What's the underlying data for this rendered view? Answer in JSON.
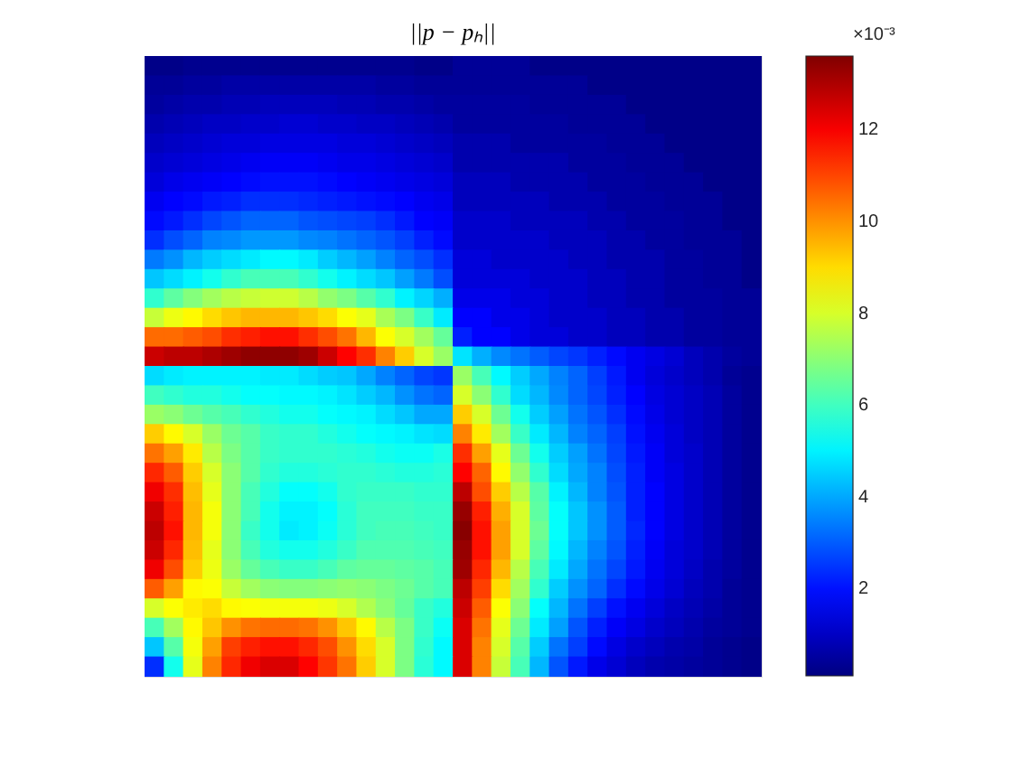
{
  "chart_data": {
    "type": "heatmap",
    "title": "||p − pₕ||",
    "clabel": "×10⁻³",
    "clim": [
      0.1,
      13.6
    ],
    "cticks": [
      2,
      4,
      6,
      8,
      10,
      12
    ],
    "categories": [
      null,
      null,
      null,
      null,
      null,
      null,
      null,
      null,
      null,
      null,
      null,
      null,
      null,
      null,
      null,
      null,
      null,
      null,
      null,
      null,
      null,
      null,
      null,
      null,
      null,
      null,
      null,
      null,
      null,
      null,
      null,
      null
    ],
    "y_categories": [
      null,
      null,
      null,
      null,
      null,
      null,
      null,
      null,
      null,
      null,
      null,
      null,
      null,
      null,
      null,
      null,
      null,
      null,
      null,
      null,
      null,
      null,
      null,
      null,
      null,
      null,
      null,
      null,
      null,
      null,
      null,
      null
    ],
    "cells": [
      [
        0.2,
        0.2,
        0.3,
        0.3,
        0.3,
        0.3,
        0.3,
        0.3,
        0.3,
        0.3,
        0.3,
        0.3,
        0.3,
        0.3,
        0.2,
        0.2,
        0.4,
        0.4,
        0.4,
        0.4,
        0.2,
        0.2,
        0.2,
        0.2,
        0.2,
        0.2,
        0.2,
        0.2,
        0.2,
        0.2,
        0.2,
        0.2
      ],
      [
        0.4,
        0.4,
        0.5,
        0.5,
        0.6,
        0.6,
        0.6,
        0.6,
        0.6,
        0.6,
        0.6,
        0.6,
        0.5,
        0.5,
        0.4,
        0.4,
        0.4,
        0.4,
        0.4,
        0.4,
        0.4,
        0.4,
        0.4,
        0.2,
        0.2,
        0.2,
        0.2,
        0.2,
        0.2,
        0.2,
        0.2,
        0.2
      ],
      [
        0.5,
        0.6,
        0.7,
        0.7,
        0.8,
        0.8,
        0.9,
        0.9,
        0.9,
        0.9,
        0.8,
        0.8,
        0.7,
        0.7,
        0.6,
        0.5,
        0.5,
        0.5,
        0.5,
        0.5,
        0.4,
        0.4,
        0.4,
        0.4,
        0.4,
        0.2,
        0.2,
        0.2,
        0.2,
        0.2,
        0.2,
        0.2
      ],
      [
        0.7,
        0.8,
        0.9,
        1.0,
        1.0,
        1.1,
        1.1,
        1.2,
        1.2,
        1.1,
        1.1,
        1.0,
        1.0,
        0.9,
        0.8,
        0.7,
        0.5,
        0.5,
        0.5,
        0.5,
        0.5,
        0.5,
        0.4,
        0.4,
        0.4,
        0.4,
        0.2,
        0.2,
        0.2,
        0.2,
        0.2,
        0.2
      ],
      [
        0.9,
        1.0,
        1.1,
        1.2,
        1.3,
        1.3,
        1.4,
        1.4,
        1.4,
        1.4,
        1.3,
        1.3,
        1.2,
        1.1,
        1.0,
        0.9,
        0.7,
        0.7,
        0.7,
        0.5,
        0.5,
        0.5,
        0.5,
        0.5,
        0.4,
        0.4,
        0.4,
        0.2,
        0.2,
        0.2,
        0.2,
        0.2
      ],
      [
        1.1,
        1.2,
        1.3,
        1.4,
        1.5,
        1.6,
        1.7,
        1.7,
        1.7,
        1.6,
        1.5,
        1.5,
        1.4,
        1.3,
        1.2,
        1.1,
        0.7,
        0.7,
        0.7,
        0.7,
        0.7,
        0.7,
        0.5,
        0.5,
        0.5,
        0.4,
        0.4,
        0.4,
        0.2,
        0.2,
        0.2,
        0.2
      ],
      [
        1.3,
        1.5,
        1.6,
        1.7,
        1.8,
        1.9,
        2.0,
        2.0,
        2.0,
        1.9,
        1.8,
        1.7,
        1.6,
        1.5,
        1.4,
        1.3,
        0.9,
        0.9,
        0.9,
        0.7,
        0.7,
        0.7,
        0.7,
        0.5,
        0.5,
        0.5,
        0.4,
        0.4,
        0.4,
        0.2,
        0.2,
        0.2
      ],
      [
        1.6,
        1.8,
        1.9,
        2.1,
        2.2,
        2.4,
        2.4,
        2.4,
        2.3,
        2.2,
        2.1,
        2.0,
        1.9,
        1.8,
        1.6,
        1.5,
        0.9,
        0.9,
        0.9,
        0.9,
        0.9,
        0.7,
        0.7,
        0.7,
        0.5,
        0.5,
        0.5,
        0.4,
        0.4,
        0.4,
        0.2,
        0.2
      ],
      [
        1.9,
        2.1,
        2.4,
        2.7,
        2.9,
        3.1,
        3.1,
        3.1,
        2.9,
        2.8,
        2.7,
        2.6,
        2.4,
        2.1,
        1.8,
        1.7,
        1.1,
        1.1,
        1.1,
        0.9,
        0.9,
        0.9,
        0.9,
        0.7,
        0.7,
        0.5,
        0.5,
        0.5,
        0.4,
        0.4,
        0.2,
        0.2
      ],
      [
        2.4,
        2.8,
        3.1,
        3.5,
        3.6,
        3.8,
        3.8,
        3.8,
        3.6,
        3.5,
        3.3,
        3.1,
        2.9,
        2.6,
        2.2,
        1.9,
        1.1,
        1.1,
        1.1,
        1.1,
        1.1,
        0.9,
        0.9,
        0.9,
        0.7,
        0.7,
        0.5,
        0.5,
        0.4,
        0.4,
        0.4,
        0.2
      ],
      [
        3.4,
        3.7,
        4.2,
        4.5,
        4.7,
        4.9,
        5.1,
        5.1,
        4.9,
        4.5,
        4.2,
        3.9,
        3.5,
        3.1,
        2.8,
        2.4,
        1.3,
        1.3,
        1.1,
        1.1,
        1.1,
        1.1,
        0.9,
        0.9,
        0.7,
        0.7,
        0.7,
        0.5,
        0.5,
        0.4,
        0.4,
        0.2
      ],
      [
        4.4,
        4.7,
        5.0,
        5.4,
        5.8,
        6.1,
        6.1,
        6.1,
        5.8,
        5.4,
        5.0,
        4.7,
        4.4,
        3.9,
        3.4,
        2.8,
        1.3,
        1.3,
        1.3,
        1.3,
        1.1,
        1.1,
        1.1,
        0.9,
        0.9,
        0.7,
        0.7,
        0.5,
        0.5,
        0.4,
        0.4,
        0.2
      ],
      [
        5.8,
        6.4,
        6.9,
        7.3,
        7.6,
        7.8,
        7.9,
        7.9,
        7.6,
        7.1,
        6.8,
        6.3,
        5.8,
        5.0,
        4.6,
        4.1,
        1.5,
        1.5,
        1.5,
        1.3,
        1.3,
        1.1,
        1.1,
        0.9,
        0.9,
        0.7,
        0.7,
        0.5,
        0.5,
        0.5,
        0.4,
        0.4
      ],
      [
        7.8,
        8.3,
        8.6,
        9.0,
        9.3,
        9.5,
        9.5,
        9.5,
        9.3,
        9.0,
        8.5,
        8.2,
        7.4,
        6.8,
        5.9,
        4.9,
        1.8,
        1.8,
        1.5,
        1.5,
        1.3,
        1.1,
        1.1,
        1.1,
        0.9,
        0.9,
        0.7,
        0.7,
        0.5,
        0.5,
        0.4,
        0.4
      ],
      [
        10.5,
        10.5,
        10.7,
        10.9,
        11.3,
        11.5,
        11.7,
        11.7,
        11.3,
        10.9,
        10.4,
        9.5,
        8.5,
        8.0,
        7.3,
        6.5,
        2.2,
        1.8,
        1.8,
        1.5,
        1.3,
        1.3,
        1.1,
        1.1,
        0.9,
        0.9,
        0.7,
        0.7,
        0.5,
        0.5,
        0.4,
        0.4
      ],
      [
        12.6,
        12.8,
        12.8,
        13.0,
        13.2,
        13.4,
        13.4,
        13.4,
        13.2,
        12.6,
        11.9,
        11.3,
        10.2,
        9.2,
        8.0,
        7.2,
        4.8,
        4.1,
        3.6,
        3.3,
        3.0,
        2.7,
        2.5,
        2.2,
        1.9,
        1.6,
        1.4,
        1.2,
        0.9,
        0.7,
        0.5,
        0.4
      ],
      [
        4.7,
        4.9,
        5.0,
        5.0,
        5.0,
        5.0,
        4.9,
        4.9,
        4.7,
        4.5,
        4.4,
        4.0,
        3.5,
        3.1,
        2.7,
        2.5,
        7.2,
        6.1,
        5.1,
        4.5,
        4.0,
        3.5,
        3.1,
        2.6,
        2.1,
        1.6,
        1.3,
        1.1,
        0.9,
        0.7,
        0.4,
        0.3
      ],
      [
        6.0,
        5.8,
        5.6,
        5.6,
        5.4,
        5.2,
        5.2,
        5.1,
        5.1,
        5.0,
        4.8,
        4.5,
        4.2,
        3.7,
        3.3,
        3.1,
        8.0,
        7.0,
        5.8,
        4.7,
        4.2,
        3.6,
        3.1,
        2.7,
        2.2,
        1.8,
        1.4,
        1.2,
        1.0,
        0.8,
        0.5,
        0.3
      ],
      [
        7.2,
        7.0,
        6.6,
        6.3,
        6.1,
        5.8,
        5.6,
        5.4,
        5.4,
        5.2,
        5.1,
        5.0,
        4.7,
        4.4,
        4.0,
        4.0,
        9.2,
        8.0,
        6.6,
        5.4,
        4.5,
        3.9,
        3.3,
        2.9,
        2.4,
        1.9,
        1.5,
        1.2,
        1.0,
        0.8,
        0.5,
        0.3
      ],
      [
        9.2,
        8.6,
        8.0,
        7.2,
        6.6,
        6.3,
        5.9,
        5.8,
        5.8,
        5.6,
        5.4,
        5.2,
        5.1,
        5.0,
        4.8,
        4.7,
        10.2,
        8.8,
        7.3,
        5.9,
        4.9,
        4.2,
        3.5,
        3.1,
        2.6,
        2.0,
        1.6,
        1.3,
        1.0,
        0.8,
        0.5,
        0.3
      ],
      [
        10.4,
        9.8,
        8.8,
        7.6,
        6.8,
        6.3,
        5.9,
        5.8,
        5.8,
        5.8,
        5.7,
        5.6,
        5.4,
        5.3,
        5.3,
        5.5,
        11.3,
        9.8,
        8.2,
        6.6,
        5.4,
        4.5,
        3.9,
        3.3,
        2.7,
        2.1,
        1.7,
        1.3,
        1.1,
        0.8,
        0.5,
        0.3
      ],
      [
        11.4,
        10.7,
        9.2,
        8.0,
        7.0,
        6.3,
        5.8,
        5.6,
        5.6,
        5.7,
        5.8,
        5.8,
        5.7,
        5.6,
        5.6,
        5.7,
        11.9,
        10.6,
        8.6,
        7.1,
        5.8,
        4.7,
        4.0,
        3.5,
        2.8,
        2.2,
        1.7,
        1.4,
        1.1,
        0.8,
        0.5,
        0.3
      ],
      [
        12.1,
        11.3,
        9.4,
        8.2,
        7.0,
        6.1,
        5.6,
        5.2,
        5.2,
        5.4,
        5.8,
        5.9,
        5.9,
        5.9,
        5.8,
        5.8,
        12.8,
        10.9,
        9.2,
        7.6,
        6.3,
        5.0,
        4.2,
        3.5,
        2.9,
        2.2,
        1.8,
        1.4,
        1.1,
        0.8,
        0.5,
        0.3
      ],
      [
        12.6,
        11.5,
        9.5,
        8.4,
        7.0,
        6.1,
        5.4,
        5.0,
        5.0,
        5.2,
        5.7,
        6.0,
        6.0,
        6.0,
        5.9,
        5.9,
        13.3,
        11.5,
        9.6,
        8.0,
        6.4,
        5.2,
        4.4,
        3.7,
        3.0,
        2.2,
        1.8,
        1.4,
        1.1,
        0.8,
        0.5,
        0.3
      ],
      [
        12.8,
        11.7,
        9.5,
        8.4,
        7.0,
        5.9,
        5.4,
        4.9,
        5.0,
        5.3,
        5.7,
        6.0,
        6.1,
        6.1,
        6.0,
        5.9,
        13.5,
        11.7,
        9.8,
        8.0,
        6.6,
        5.2,
        4.4,
        3.7,
        3.0,
        2.3,
        1.8,
        1.4,
        1.1,
        0.8,
        0.5,
        0.3
      ],
      [
        12.6,
        11.4,
        9.4,
        8.2,
        7.0,
        6.1,
        5.6,
        5.4,
        5.4,
        5.6,
        5.9,
        6.2,
        6.2,
        6.2,
        6.1,
        6.0,
        13.3,
        11.7,
        9.8,
        8.0,
        6.4,
        5.1,
        4.2,
        3.5,
        2.9,
        2.2,
        1.7,
        1.3,
        1.1,
        0.8,
        0.5,
        0.3
      ],
      [
        12.1,
        10.9,
        9.2,
        8.3,
        7.2,
        6.5,
        6.1,
        5.9,
        5.9,
        6.1,
        6.4,
        6.5,
        6.5,
        6.4,
        6.3,
        6.1,
        13.2,
        11.4,
        9.5,
        7.6,
        6.1,
        4.9,
        4.0,
        3.3,
        2.7,
        2.1,
        1.6,
        1.3,
        1.0,
        0.7,
        0.5,
        0.3
      ],
      [
        10.7,
        9.8,
        8.6,
        8.5,
        7.8,
        7.3,
        7.0,
        6.9,
        6.9,
        7.0,
        7.1,
        7.0,
        6.8,
        6.6,
        6.3,
        6.1,
        12.8,
        11.1,
        9.0,
        7.3,
        5.8,
        4.5,
        3.7,
        3.1,
        2.4,
        1.9,
        1.5,
        1.2,
        0.9,
        0.7,
        0.4,
        0.3
      ],
      [
        8.0,
        8.5,
        8.8,
        9.0,
        8.6,
        8.5,
        8.4,
        8.4,
        8.4,
        8.3,
        8.0,
        7.5,
        7.0,
        6.5,
        5.9,
        5.6,
        12.6,
        10.7,
        8.5,
        7.0,
        5.2,
        4.2,
        3.3,
        2.6,
        2.0,
        1.6,
        1.3,
        1.0,
        0.8,
        0.6,
        0.4,
        0.3
      ],
      [
        6.1,
        7.3,
        8.6,
        9.3,
        10.0,
        10.4,
        10.5,
        10.5,
        10.4,
        10.0,
        9.3,
        8.6,
        7.6,
        6.8,
        5.9,
        5.3,
        12.4,
        10.4,
        8.2,
        6.6,
        4.9,
        3.9,
        2.9,
        2.2,
        1.7,
        1.4,
        1.1,
        0.9,
        0.7,
        0.5,
        0.4,
        0.3
      ],
      [
        4.4,
        6.3,
        8.4,
        9.8,
        11.1,
        11.5,
        11.7,
        11.7,
        11.4,
        10.9,
        10.0,
        9.0,
        8.0,
        6.8,
        5.8,
        5.1,
        12.4,
        10.2,
        8.0,
        6.3,
        4.5,
        3.3,
        2.6,
        1.9,
        1.4,
        1.1,
        0.9,
        0.7,
        0.6,
        0.4,
        0.3,
        0.2
      ],
      [
        2.4,
        5.4,
        8.2,
        10.2,
        11.4,
        12.1,
        12.4,
        12.4,
        11.9,
        11.2,
        10.4,
        9.2,
        8.0,
        6.8,
        5.7,
        5.1,
        12.4,
        10.2,
        7.8,
        6.1,
        4.2,
        2.9,
        2.1,
        1.5,
        1.2,
        0.9,
        0.7,
        0.6,
        0.5,
        0.4,
        0.3,
        0.2
      ]
    ]
  }
}
